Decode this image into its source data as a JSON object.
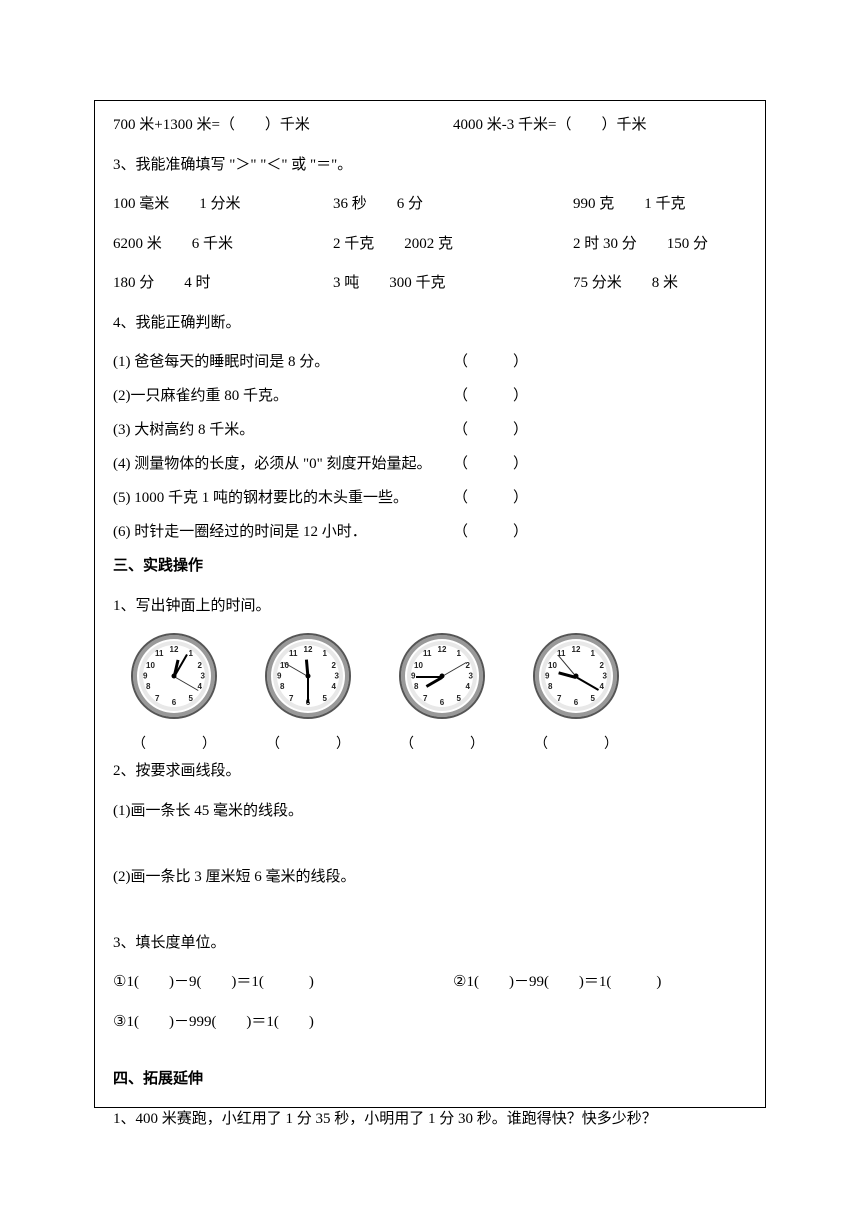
{
  "eq_row": {
    "left": "700 米+1300 米=（　　）千米",
    "right": "4000 米-3 千米=（　　）千米"
  },
  "q3_title": "3、我能准确填写 \"＞\" \"＜\" 或 \"＝\"。",
  "q3_rows": [
    {
      "a": "100 毫米　　1 分米",
      "b": "36 秒　　6 分",
      "c": "990 克　　1 千克"
    },
    {
      "a": "6200 米　　6 千米",
      "b": "2 千克　　2002 克",
      "c": "2 时 30 分　　150 分"
    },
    {
      "a": "180 分　　4 时",
      "b": "3 吨　　300 千克",
      "c": "75 分米　　8 米"
    }
  ],
  "q4_title": "4、我能正确判断。",
  "q4_items": [
    "(1) 爸爸每天的睡眠时间是 8 分。",
    "(2)一只麻雀约重 80 千克。",
    "(3) 大树高约 8 千米。",
    "(4) 测量物体的长度，必须从 \"0\" 刻度开始量起。",
    "(5) 1000 千克 1 吨的钢材要比的木头重一些。",
    "(6) 时针走一圈经过的时间是 12 小时．"
  ],
  "paren_blank": "（　　　）",
  "sec3_title": "三、实践操作",
  "sec3_q1": "1、写出钟面上的时间。",
  "clocks": [
    {
      "hour_angle": 13,
      "minute_angle": 30,
      "second_angle": 120
    },
    {
      "hour_angle": -5,
      "minute_angle": -180,
      "second_angle": -60
    },
    {
      "hour_angle": -120,
      "minute_angle": -90,
      "second_angle": 60
    },
    {
      "hour_angle": -75,
      "minute_angle": 120,
      "second_angle": -40
    }
  ],
  "clock_blank": "（　　　　）",
  "sec3_q2": "2、按要求画线段。",
  "sec3_q2_1": "(1)画一条长 45 毫米的线段。",
  "sec3_q2_2": "(2)画一条比 3 厘米短 6 毫米的线段。",
  "sec3_q3": "3、填长度单位。",
  "sec3_q3_row1": {
    "left": "①1(　　)－9(　　)＝1(　　　)",
    "right": "②1(　　)－99(　　)＝1(　　　)"
  },
  "sec3_q3_row2": "③1(　　)－999(　　)＝1(　　)",
  "sec4_title": "四、拓展延伸",
  "sec4_q1": "1、400 米赛跑，小红用了 1 分 35 秒，小明用了 1 分 30 秒。谁跑得快？快多少秒？"
}
